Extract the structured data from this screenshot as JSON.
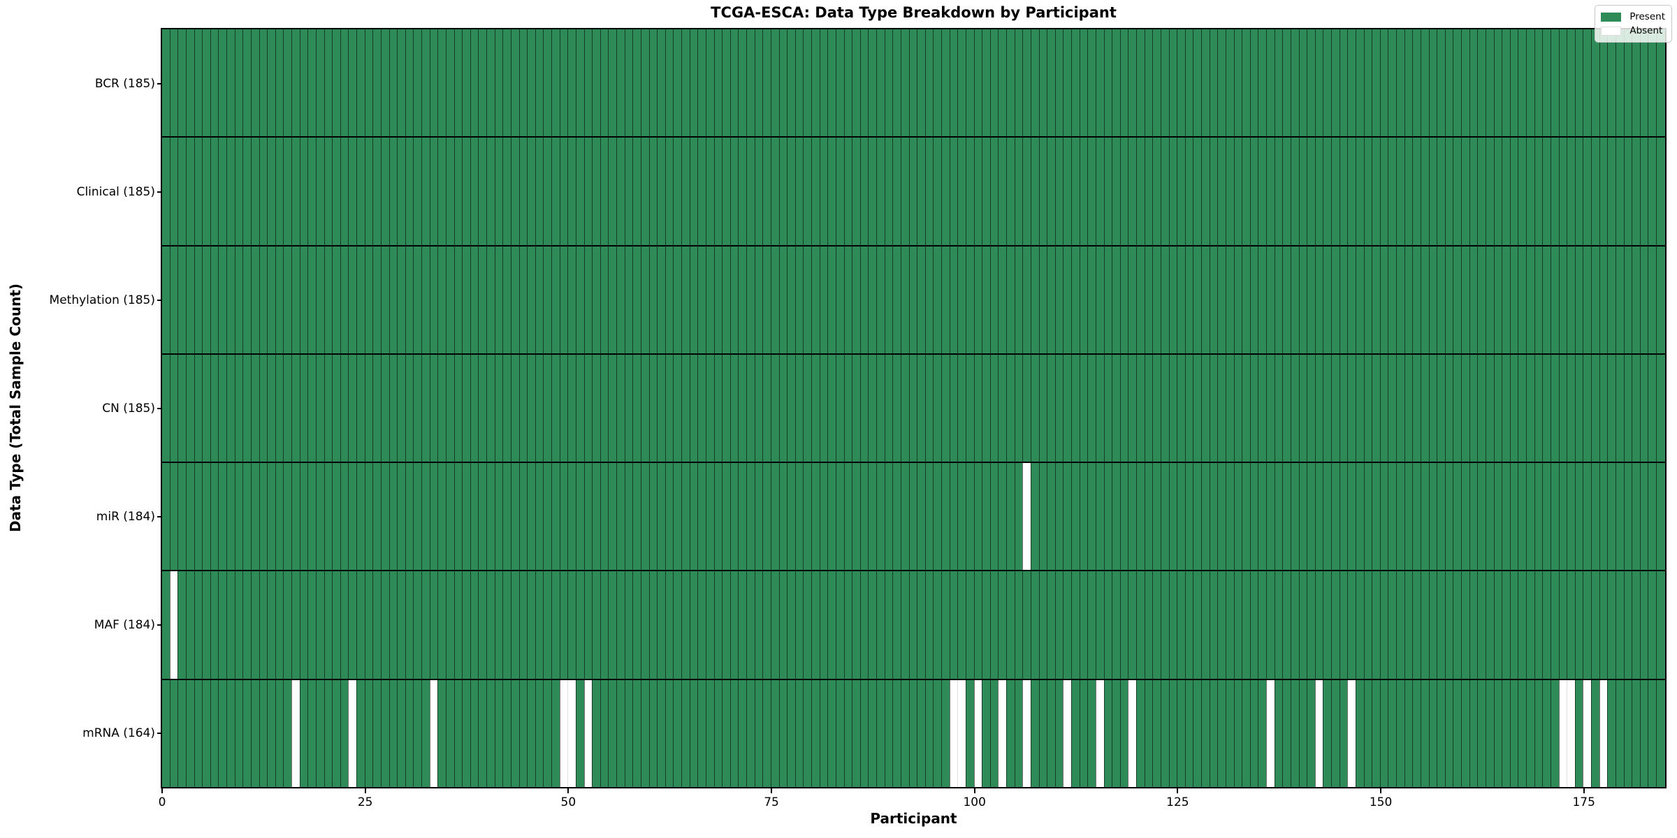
{
  "chart_data": {
    "type": "heatmap",
    "title": "TCGA-ESCA: Data Type Breakdown by Participant",
    "xlabel": "Participant",
    "ylabel": "Data Type (Total Sample Count)",
    "n_participants": 185,
    "x_ticks": [
      0,
      25,
      50,
      75,
      100,
      125,
      150,
      175
    ],
    "grid": true,
    "legend_position": "upper right",
    "colors": {
      "present": "#2e8b57",
      "absent": "#ffffff"
    },
    "legend": [
      {
        "label": "Present",
        "swatch": "#2e8b57"
      },
      {
        "label": "Absent",
        "swatch": "#ffffff"
      }
    ],
    "rows": [
      {
        "key": "bcr",
        "data_type": "BCR",
        "label": "BCR (185)",
        "present_count": 185,
        "absent_participants": []
      },
      {
        "key": "clinical",
        "data_type": "Clinical",
        "label": "Clinical (185)",
        "present_count": 185,
        "absent_participants": []
      },
      {
        "key": "methylation",
        "data_type": "Methylation",
        "label": "Methylation (185)",
        "present_count": 185,
        "absent_participants": []
      },
      {
        "key": "cn",
        "data_type": "CN",
        "label": "CN (185)",
        "present_count": 185,
        "absent_participants": []
      },
      {
        "key": "mir",
        "data_type": "miR",
        "label": "miR (184)",
        "present_count": 184,
        "absent_participants": [
          106
        ]
      },
      {
        "key": "maf",
        "data_type": "MAF",
        "label": "MAF (184)",
        "present_count": 184,
        "absent_participants": [
          1
        ]
      },
      {
        "key": "mrna",
        "data_type": "mRNA",
        "label": "mRNA (164)",
        "present_count": 164,
        "absent_participants": [
          16,
          23,
          33,
          49,
          50,
          52,
          97,
          98,
          100,
          103,
          106,
          111,
          115,
          119,
          136,
          142,
          146,
          172,
          173,
          175,
          177
        ]
      }
    ]
  }
}
